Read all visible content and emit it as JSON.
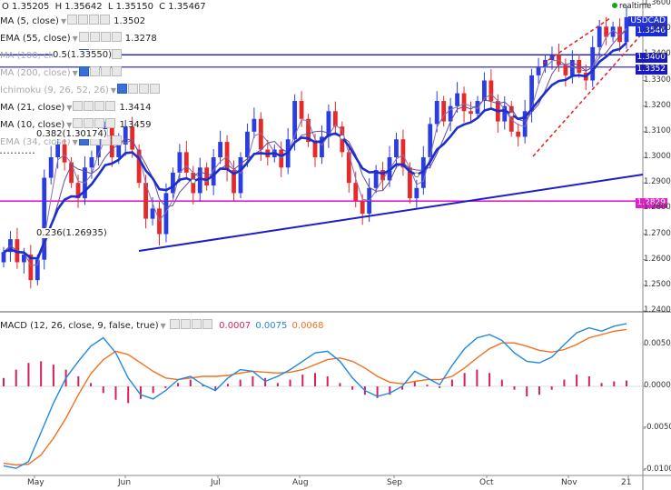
{
  "ohlc": {
    "o": "O 1.35205",
    "h": "H 1.35642",
    "l": "L 1.35150",
    "c": "C 1.35467"
  },
  "realtime": "realtime",
  "symbol": "USDCAD",
  "indicators": [
    {
      "name": "MA (5, close)",
      "value": "1.3502",
      "active": true
    },
    {
      "name": "EMA (55, close)",
      "value": "1.3278",
      "active": true
    },
    {
      "name": "MA (100, close)",
      "value": "",
      "active": false
    },
    {
      "name": "MA (200, close)",
      "value": "",
      "active": false
    },
    {
      "name": "Ichimoku (9, 26, 52, 26)",
      "value": "",
      "active": false
    },
    {
      "name": "MA (21, close)",
      "value": "1.3414",
      "active": true
    },
    {
      "name": "MA (10, close)",
      "value": "1.3459",
      "active": true
    },
    {
      "name": "EMA (34, close)",
      "value": "",
      "active": false
    }
  ],
  "macd_legend": {
    "name": "MACD (12, 26, close, 9, false, true)",
    "v1": "0.0007",
    "v2": "0.0075",
    "v3": "0.0068"
  },
  "price_tags": {
    "current": "1.3546",
    "res1": "1.3400",
    "res2": "1.3352",
    "support": "1.2829"
  },
  "fib_labels": {
    "f50": "0.5(1.33550)",
    "f382": "0.382(1.30174)",
    "f236": "0.236(1.26935)"
  },
  "colors": {
    "bull": "#2a3de0",
    "bear": "#e62a2a",
    "trend": "#1b1fc8",
    "support": "#e020c8",
    "ema55": "#1b2fd0",
    "ma21": "#6a4a9a",
    "ma10": "#8a70b0",
    "macd": "#1f88e0",
    "signal": "#f07020",
    "hist": "#d42060"
  },
  "chart_data": [
    {
      "type": "candlestick",
      "instrument": "USDCAD",
      "ylim": [
        1.24,
        1.36
      ],
      "yticks": [
        "1.3600",
        "1.3500",
        "1.3400",
        "1.3300",
        "1.3200",
        "1.3100",
        "1.3000",
        "1.2900",
        "1.2800",
        "1.2700",
        "1.2600",
        "1.2500",
        "1.2400"
      ],
      "xticks": [
        "May",
        "Jun",
        "Jul",
        "Aug",
        "Sep",
        "Oct",
        "Nov",
        "21"
      ],
      "horizontal_levels": [
        1.34,
        1.3352,
        1.2829
      ],
      "fibonacci": [
        {
          "label": "0.5(1.33550)",
          "value": 1.3355
        },
        {
          "label": "0.382(1.30174)",
          "value": 1.3017
        },
        {
          "label": "0.236(1.26935)",
          "value": 1.26935
        }
      ],
      "close_path": [
        1.263,
        1.268,
        1.259,
        1.262,
        1.252,
        1.26,
        1.292,
        1.3,
        1.305,
        1.298,
        1.29,
        1.284,
        1.296,
        1.3,
        1.308,
        1.312,
        1.3,
        1.305,
        1.312,
        1.303,
        1.29,
        1.276,
        1.28,
        1.27,
        1.286,
        1.294,
        1.302,
        1.294,
        1.286,
        1.296,
        1.289,
        1.3,
        1.306,
        1.295,
        1.286,
        1.3,
        1.31,
        1.315,
        1.303,
        1.3,
        1.303,
        1.296,
        1.307,
        1.322,
        1.315,
        1.306,
        1.3,
        1.308,
        1.318,
        1.312,
        1.302,
        1.29,
        1.283,
        1.278,
        1.288,
        1.295,
        1.291,
        1.3,
        1.307,
        1.296,
        1.284,
        1.288,
        1.3,
        1.313,
        1.322,
        1.314,
        1.32,
        1.325,
        1.318,
        1.317,
        1.322,
        1.33,
        1.322,
        1.314,
        1.32,
        1.31,
        1.308,
        1.318,
        1.332,
        1.335,
        1.338,
        1.34,
        1.336,
        1.332,
        1.338,
        1.333,
        1.33,
        1.343,
        1.351,
        1.347,
        1.351,
        1.345,
        1.3547
      ]
    },
    {
      "type": "macd",
      "name": "MACD (12, 26, close, 9, false, true)",
      "ylim": [
        -0.01,
        0.0075
      ],
      "yticks": [
        "0.0050",
        "0.0000",
        "-0.0050",
        "-0.0100"
      ],
      "macd": [
        -0.0095,
        -0.0098,
        -0.009,
        -0.0055,
        -0.002,
        0.001,
        0.003,
        0.0048,
        0.0058,
        0.004,
        0.001,
        -0.001,
        -0.0015,
        -0.0005,
        0.0008,
        0.0012,
        0.0002,
        -0.0005,
        0.001,
        0.002,
        0.0018,
        0.0006,
        0.0012,
        0.002,
        0.003,
        0.004,
        0.0042,
        0.003,
        0.001,
        -0.0005,
        -0.0012,
        -0.0008,
        0.0,
        0.0018,
        0.001,
        0.0002,
        0.0025,
        0.0045,
        0.0058,
        0.0062,
        0.0055,
        0.004,
        0.003,
        0.0028,
        0.0035,
        0.005,
        0.0064,
        0.007,
        0.0066,
        0.0072,
        0.0075
      ],
      "signal": [
        -0.0092,
        -0.0094,
        -0.0093,
        -0.0082,
        -0.0062,
        -0.0038,
        -0.001,
        0.0015,
        0.0032,
        0.0042,
        0.0038,
        0.0028,
        0.0018,
        0.001,
        0.0008,
        0.001,
        0.0012,
        0.0012,
        0.0013,
        0.0016,
        0.0018,
        0.0017,
        0.0016,
        0.0017,
        0.002,
        0.0026,
        0.0032,
        0.0034,
        0.003,
        0.0022,
        0.0012,
        0.0005,
        0.0003,
        0.0006,
        0.0008,
        0.0008,
        0.0012,
        0.0022,
        0.0034,
        0.0045,
        0.0052,
        0.0052,
        0.0048,
        0.0043,
        0.0041,
        0.0044,
        0.005,
        0.0058,
        0.0062,
        0.0066,
        0.0068
      ],
      "histogram": [
        0.001,
        0.002,
        0.0028,
        0.003,
        0.0026,
        0.002,
        0.0012,
        0.0004,
        -0.0008,
        -0.0016,
        -0.002,
        -0.0015,
        -0.0008,
        -0.0002,
        0.0004,
        0.0008,
        0.0002,
        -0.0004,
        0.0003,
        0.0008,
        0.0012,
        0.001,
        0.0004,
        0.0008,
        0.0014,
        0.0016,
        0.0012,
        0.0004,
        -0.0004,
        -0.001,
        -0.0014,
        -0.001,
        -0.0004,
        0.0006,
        0.0002,
        -0.0002,
        0.0008,
        0.0016,
        0.002,
        0.0016,
        0.0008,
        -0.0004,
        -0.0012,
        -0.001,
        -0.0004,
        0.0008,
        0.0014,
        0.0012,
        0.0004,
        0.0006,
        0.0007
      ]
    }
  ]
}
